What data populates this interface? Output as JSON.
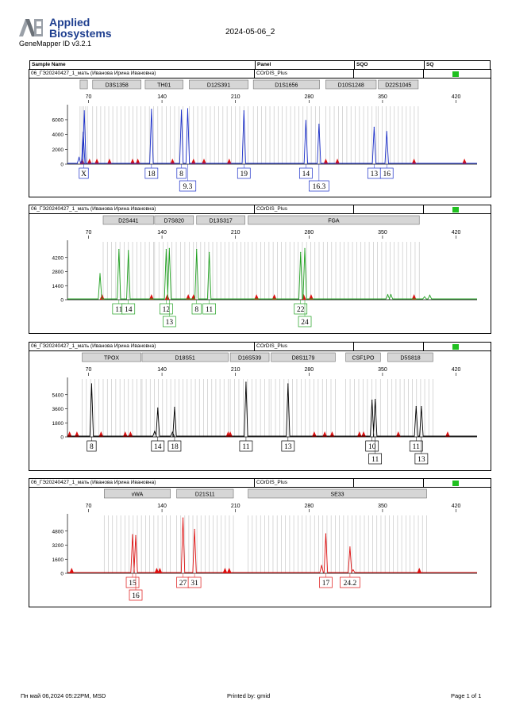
{
  "logo": {
    "company_line1": "Applied",
    "company_line2": "Biosystems",
    "software": "GeneMapper ID v3.2.1"
  },
  "report_title": "2024-05-06_2",
  "columns": {
    "sample_name": "Sample Name",
    "panel": "Panel",
    "sqo": "SQO",
    "sq": "SQ"
  },
  "colors": {
    "blue": "#1a2ec8",
    "green": "#20a020",
    "black": "#000000",
    "red": "#dd1010",
    "bin": "#c8c8c8",
    "marker_fill": "#d6d6d6",
    "ok": "#20c020"
  },
  "chart_data": [
    {
      "type": "line",
      "dye": "blue",
      "sample": "06_ГЭ20240427_1_мать (Иванова Ирина Ивановна)",
      "panel": "COrDIS_Plus",
      "xlim": [
        50,
        440
      ],
      "xticks": [
        70,
        140,
        210,
        280,
        350,
        420
      ],
      "ylim": [
        0,
        7600
      ],
      "yticks": [
        0,
        2000,
        4000,
        6000
      ],
      "markers": [
        {
          "label": "",
          "start": 62,
          "end": 69
        },
        {
          "label": "D3S1358",
          "start": 74,
          "end": 120
        },
        {
          "label": "TH01",
          "start": 124,
          "end": 160
        },
        {
          "label": "D12S391",
          "start": 166,
          "end": 222
        },
        {
          "label": "D1S1656",
          "start": 227,
          "end": 290
        },
        {
          "label": "D10S1248",
          "start": 296,
          "end": 344
        },
        {
          "label": "D22S1045",
          "start": 346,
          "end": 384
        }
      ],
      "peaks": [
        {
          "x": 65.0,
          "h": 4300
        },
        {
          "x": 66.0,
          "h": 7200
        },
        {
          "x": 61.0,
          "h": 900
        },
        {
          "x": 130.0,
          "h": 7400
        },
        {
          "x": 158.5,
          "h": 7300
        },
        {
          "x": 164.5,
          "h": 7500
        },
        {
          "x": 218.0,
          "h": 7200
        },
        {
          "x": 277.0,
          "h": 5900
        },
        {
          "x": 289.5,
          "h": 5400
        },
        {
          "x": 342.0,
          "h": 5000
        },
        {
          "x": 354.0,
          "h": 4400
        }
      ],
      "artifacts": [
        64,
        71,
        78,
        90,
        112,
        117,
        150,
        170,
        180,
        204,
        296,
        307,
        380,
        428
      ],
      "alleles": [
        {
          "label": "X",
          "x": 65.5,
          "row": 0
        },
        {
          "label": "18",
          "x": 130,
          "row": 0
        },
        {
          "label": "8",
          "x": 158.5,
          "row": 0
        },
        {
          "label": "9.3",
          "x": 164.5,
          "row": 1
        },
        {
          "label": "19",
          "x": 218,
          "row": 0
        },
        {
          "label": "14",
          "x": 277,
          "row": 0
        },
        {
          "label": "16.3",
          "x": 289.5,
          "row": 1
        },
        {
          "label": "13",
          "x": 342,
          "row": 0
        },
        {
          "label": "16",
          "x": 354,
          "row": 0
        }
      ]
    },
    {
      "type": "line",
      "dye": "green",
      "sample": "06_ГЭ20240427_1_мать (Иванова Ирина Ивановна)",
      "panel": "COrDIS_Plus",
      "xlim": [
        50,
        440
      ],
      "xticks": [
        70,
        140,
        210,
        280,
        350,
        420
      ],
      "ylim": [
        0,
        5600
      ],
      "yticks": [
        0,
        1400,
        2800,
        4200
      ],
      "markers": [
        {
          "label": "D2S441",
          "start": 84,
          "end": 132
        },
        {
          "label": "D7S820",
          "start": 133,
          "end": 170
        },
        {
          "label": "D13S317",
          "start": 173,
          "end": 219
        },
        {
          "label": "FGA",
          "start": 222,
          "end": 385
        }
      ],
      "peaks": [
        {
          "x": 81.0,
          "h": 2600
        },
        {
          "x": 99.0,
          "h": 5000
        },
        {
          "x": 108.0,
          "h": 4900
        },
        {
          "x": 144.0,
          "h": 5000
        },
        {
          "x": 147.0,
          "h": 5100
        },
        {
          "x": 173.0,
          "h": 5000
        },
        {
          "x": 185.0,
          "h": 4700
        },
        {
          "x": 272.0,
          "h": 4700
        },
        {
          "x": 276.0,
          "h": 5100
        },
        {
          "x": 355.0,
          "h": 500
        },
        {
          "x": 358.0,
          "h": 500
        },
        {
          "x": 390.0,
          "h": 300
        },
        {
          "x": 395.0,
          "h": 450
        }
      ],
      "artifacts": [
        83,
        130,
        145,
        165,
        170,
        230,
        247,
        275,
        282,
        380
      ],
      "alleles": [
        {
          "label": "11",
          "x": 99,
          "row": 0
        },
        {
          "label": "14",
          "x": 108,
          "row": 0
        },
        {
          "label": "12",
          "x": 144,
          "row": 0
        },
        {
          "label": "13",
          "x": 147,
          "row": 1
        },
        {
          "label": "8",
          "x": 173,
          "row": 0
        },
        {
          "label": "11",
          "x": 185,
          "row": 0
        },
        {
          "label": "22",
          "x": 272,
          "row": 0
        },
        {
          "label": "24",
          "x": 276,
          "row": 1
        }
      ]
    },
    {
      "type": "line",
      "dye": "black",
      "sample": "06_ГЭ20240427_1_мать (Иванова Ирина Ивановна)",
      "panel": "COrDIS_Plus",
      "xlim": [
        50,
        440
      ],
      "xticks": [
        70,
        140,
        210,
        280,
        350,
        420
      ],
      "ylim": [
        0,
        7200
      ],
      "yticks": [
        0,
        1800,
        3600,
        5400
      ],
      "markers": [
        {
          "label": "TPOX",
          "start": 64,
          "end": 120
        },
        {
          "label": "D18S51",
          "start": 121,
          "end": 203
        },
        {
          "label": "D16S539",
          "start": 205,
          "end": 242
        },
        {
          "label": "D8S1179",
          "start": 244,
          "end": 305
        },
        {
          "label": "CSF1PO",
          "start": 315,
          "end": 348
        },
        {
          "label": "D5S818",
          "start": 355,
          "end": 398
        }
      ],
      "peaks": [
        {
          "x": 73.0,
          "h": 6800
        },
        {
          "x": 136.0,
          "h": 3700
        },
        {
          "x": 152.0,
          "h": 3800
        },
        {
          "x": 133.0,
          "h": 700
        },
        {
          "x": 150.0,
          "h": 600
        },
        {
          "x": 220.0,
          "h": 7000
        },
        {
          "x": 260.0,
          "h": 6800
        },
        {
          "x": 340.0,
          "h": 4700
        },
        {
          "x": 343.0,
          "h": 4800
        },
        {
          "x": 382.0,
          "h": 3900
        },
        {
          "x": 387.0,
          "h": 3900
        }
      ],
      "artifacts": [
        52,
        59,
        82,
        105,
        110,
        203,
        205,
        285,
        295,
        302,
        328,
        332,
        365,
        412
      ],
      "alleles": [
        {
          "label": "8",
          "x": 73,
          "row": 0
        },
        {
          "label": "14",
          "x": 136,
          "row": 0
        },
        {
          "label": "18",
          "x": 152,
          "row": 0
        },
        {
          "label": "11",
          "x": 220,
          "row": 0
        },
        {
          "label": "13",
          "x": 260,
          "row": 0
        },
        {
          "label": "10",
          "x": 340,
          "row": 0
        },
        {
          "label": "11",
          "x": 343,
          "row": 1
        },
        {
          "label": "11",
          "x": 382,
          "row": 0
        },
        {
          "label": "13",
          "x": 387,
          "row": 1
        }
      ]
    },
    {
      "type": "line",
      "dye": "red",
      "sample": "06_ГЭ20240427_1_мать (Иванова Ирина Ивановна)",
      "panel": "COrDIS_Plus",
      "xlim": [
        50,
        440
      ],
      "xticks": [
        70,
        140,
        210,
        280,
        350,
        420
      ],
      "ylim": [
        0,
        6400
      ],
      "yticks": [
        0,
        1600,
        3200,
        4800
      ],
      "markers": [
        {
          "label": "vWA",
          "start": 85,
          "end": 148
        },
        {
          "label": "D21S11",
          "start": 154,
          "end": 208
        },
        {
          "label": "SE33",
          "start": 222,
          "end": 392
        }
      ],
      "peaks": [
        {
          "x": 112.0,
          "h": 4400
        },
        {
          "x": 115.0,
          "h": 4300
        },
        {
          "x": 160.0,
          "h": 6300
        },
        {
          "x": 171.0,
          "h": 5000
        },
        {
          "x": 296.0,
          "h": 4500
        },
        {
          "x": 319.0,
          "h": 3000
        },
        {
          "x": 322.0,
          "h": 400
        },
        {
          "x": 292.0,
          "h": 900
        }
      ],
      "artifacts": [
        54,
        135,
        138,
        200,
        204,
        385
      ],
      "alleles": [
        {
          "label": "15",
          "x": 112,
          "row": 0
        },
        {
          "label": "16",
          "x": 115,
          "row": 1
        },
        {
          "label": "27",
          "x": 160,
          "row": 0
        },
        {
          "label": "31",
          "x": 171,
          "row": 0
        },
        {
          "label": "17",
          "x": 296,
          "row": 0
        },
        {
          "label": "24.2",
          "x": 319,
          "row": 0
        }
      ]
    }
  ],
  "footer": {
    "date": "Пн май 06,2024 05:22PM, MSD",
    "printed_by": "Printed by: gmid",
    "page": "Page 1 of 1"
  }
}
